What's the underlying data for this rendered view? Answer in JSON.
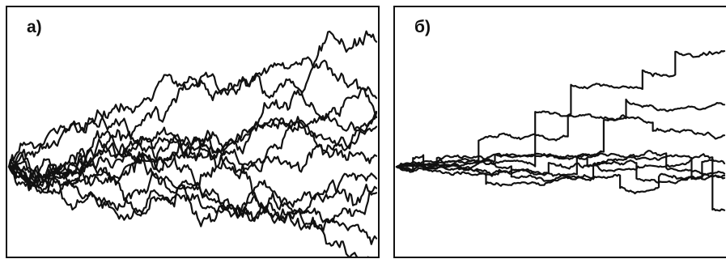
{
  "colors": {
    "line": "#111111",
    "frame": "#111111",
    "background": "#ffffff"
  },
  "chart_data": [
    {
      "type": "line",
      "label": "а)",
      "process": "diffusion",
      "xlim": [
        0,
        1
      ],
      "ylim": [
        -1,
        1
      ],
      "grid": false,
      "axes_ticks": false,
      "series": [
        {
          "seed": 11,
          "sigma": 0.9,
          "drift": 0.72
        },
        {
          "seed": 23,
          "sigma": 0.9,
          "drift": 0.55
        },
        {
          "seed": 37,
          "sigma": 0.9,
          "drift": 0.46
        },
        {
          "seed": 41,
          "sigma": 0.9,
          "drift": 0.38
        },
        {
          "seed": 53,
          "sigma": 0.9,
          "drift": 0.3
        },
        {
          "seed": 67,
          "sigma": 0.9,
          "drift": 0.22
        },
        {
          "seed": 71,
          "sigma": 0.9,
          "drift": 0.14
        },
        {
          "seed": 83,
          "sigma": 0.9,
          "drift": 0.06
        },
        {
          "seed": 97,
          "sigma": 0.9,
          "drift": -0.02
        },
        {
          "seed": 101,
          "sigma": 0.9,
          "drift": -0.14
        },
        {
          "seed": 113,
          "sigma": 0.9,
          "drift": -0.32
        },
        {
          "seed": 127,
          "sigma": 0.9,
          "drift": -0.62
        }
      ]
    },
    {
      "type": "line",
      "label": "б)",
      "process": "jump",
      "xlim": [
        0,
        1
      ],
      "ylim": [
        -1,
        1
      ],
      "grid": false,
      "axes_ticks": false,
      "series": [
        {
          "seed": 5,
          "sigma": 0.12,
          "jumps": [
            [
              0.42,
              0.52
            ],
            [
              0.53,
              0.28
            ],
            [
              0.75,
              0.18
            ],
            [
              0.85,
              0.22
            ]
          ]
        },
        {
          "seed": 9,
          "sigma": 0.12,
          "jumps": [
            [
              0.25,
              0.22
            ],
            [
              0.52,
              0.2
            ],
            [
              0.7,
              0.18
            ]
          ]
        },
        {
          "seed": 13,
          "sigma": 0.12,
          "jumps": [
            [
              0.63,
              0.3
            ],
            [
              0.78,
              -0.08
            ]
          ]
        },
        {
          "seed": 17,
          "sigma": 0.12,
          "jumps": [
            [
              0.05,
              0.12
            ],
            [
              0.08,
              -0.14
            ],
            [
              0.55,
              0.16
            ],
            [
              0.9,
              -0.2
            ]
          ]
        },
        {
          "seed": 19,
          "sigma": 0.12,
          "jumps": [
            [
              0.27,
              -0.1
            ],
            [
              0.6,
              0.12
            ],
            [
              0.82,
              -0.14
            ]
          ]
        },
        {
          "seed": 29,
          "sigma": 0.12,
          "jumps": [
            [
              0.12,
              0.08
            ],
            [
              0.35,
              -0.1
            ],
            [
              0.68,
              -0.12
            ],
            [
              0.8,
              0.1
            ]
          ]
        },
        {
          "seed": 31,
          "sigma": 0.12,
          "jumps": [
            [
              0.46,
              0.1
            ],
            [
              0.73,
              -0.15
            ],
            [
              0.93,
              0.16
            ]
          ]
        },
        {
          "seed": 43,
          "sigma": 0.12,
          "jumps": [
            [
              0.3,
              0.06
            ],
            [
              0.58,
              -0.08
            ],
            [
              0.96,
              -0.5
            ]
          ]
        }
      ]
    }
  ]
}
